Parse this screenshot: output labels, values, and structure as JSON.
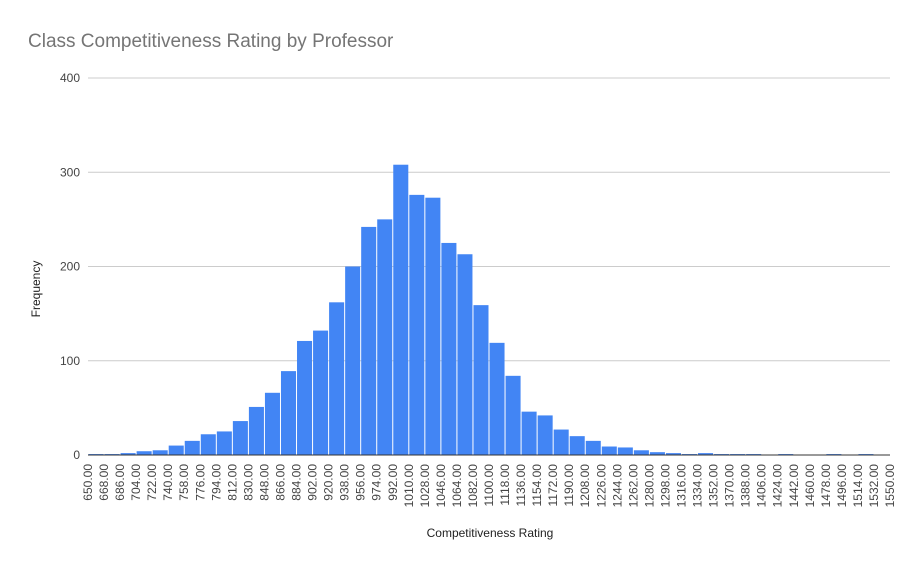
{
  "chart_data": {
    "type": "histogram",
    "title": "Class Competitiveness Rating by Professor",
    "x_label": "Competitiveness Rating",
    "y_label": "Frequency",
    "color": "#4285f4",
    "grid": true,
    "bins": [
      650,
      668,
      686,
      704,
      722,
      740,
      758,
      776,
      794,
      812,
      830,
      848,
      866,
      884,
      902,
      920,
      938,
      956,
      974,
      992,
      1010,
      1028,
      1046,
      1064,
      1082,
      1100,
      1118,
      1136,
      1154,
      1172,
      1190,
      1208,
      1226,
      1244,
      1262,
      1280,
      1298,
      1316,
      1334,
      1352,
      1370,
      1388,
      1406,
      1424,
      1442,
      1460,
      1478,
      1496,
      1514,
      1532,
      1550
    ],
    "values": [
      1,
      1,
      2,
      4,
      5,
      10,
      15,
      22,
      25,
      36,
      51,
      66,
      89,
      121,
      132,
      162,
      200,
      242,
      250,
      308,
      276,
      273,
      225,
      213,
      159,
      119,
      84,
      46,
      42,
      27,
      20,
      15,
      9,
      8,
      5,
      3,
      2,
      1,
      2,
      1,
      1,
      1,
      0,
      1,
      0,
      0,
      1,
      0,
      1,
      0
    ],
    "xlim": [
      650,
      1550
    ],
    "xticks": [
      {
        "value": 650,
        "label": "650.00"
      },
      {
        "value": 668,
        "label": "668.00"
      },
      {
        "value": 686,
        "label": "686.00"
      },
      {
        "value": 704,
        "label": "704.00"
      },
      {
        "value": 722,
        "label": "722.00"
      },
      {
        "value": 740,
        "label": "740.00"
      },
      {
        "value": 758,
        "label": "758.00"
      },
      {
        "value": 776,
        "label": "776.00"
      },
      {
        "value": 794,
        "label": "794.00"
      },
      {
        "value": 812,
        "label": "812.00"
      },
      {
        "value": 830,
        "label": "830.00"
      },
      {
        "value": 848,
        "label": "848.00"
      },
      {
        "value": 866,
        "label": "866.00"
      },
      {
        "value": 884,
        "label": "884.00"
      },
      {
        "value": 902,
        "label": "902.00"
      },
      {
        "value": 920,
        "label": "920.00"
      },
      {
        "value": 938,
        "label": "938.00"
      },
      {
        "value": 956,
        "label": "956.00"
      },
      {
        "value": 974,
        "label": "974.00"
      },
      {
        "value": 992,
        "label": "992.00"
      },
      {
        "value": 1010,
        "label": "1010.00"
      },
      {
        "value": 1028,
        "label": "1028.00"
      },
      {
        "value": 1046,
        "label": "1046.00"
      },
      {
        "value": 1064,
        "label": "1064.00"
      },
      {
        "value": 1082,
        "label": "1082.00"
      },
      {
        "value": 1100,
        "label": "1100.00"
      },
      {
        "value": 1118,
        "label": "1118.00"
      },
      {
        "value": 1136,
        "label": "1136.00"
      },
      {
        "value": 1154,
        "label": "1154.00"
      },
      {
        "value": 1172,
        "label": "1172.00"
      },
      {
        "value": 1190,
        "label": "1190.00"
      },
      {
        "value": 1208,
        "label": "1208.00"
      },
      {
        "value": 1226,
        "label": "1226.00"
      },
      {
        "value": 1244,
        "label": "1244.00"
      },
      {
        "value": 1262,
        "label": "1262.00"
      },
      {
        "value": 1280,
        "label": "1280.00"
      },
      {
        "value": 1298,
        "label": "1298.00"
      },
      {
        "value": 1316,
        "label": "1316.00"
      },
      {
        "value": 1334,
        "label": "1334.00"
      },
      {
        "value": 1352,
        "label": "1352.00"
      },
      {
        "value": 1370,
        "label": "1370.00"
      },
      {
        "value": 1388,
        "label": "1388.00"
      },
      {
        "value": 1406,
        "label": "1406.00"
      },
      {
        "value": 1424,
        "label": "1424.00"
      },
      {
        "value": 1442,
        "label": "1442.00"
      },
      {
        "value": 1460,
        "label": "1460.00"
      },
      {
        "value": 1478,
        "label": "1478.00"
      },
      {
        "value": 1496,
        "label": "1496.00"
      },
      {
        "value": 1514,
        "label": "1514.00"
      },
      {
        "value": 1532,
        "label": "1532.00"
      },
      {
        "value": 1550,
        "label": "1550.00"
      }
    ],
    "ylim": [
      0,
      400
    ],
    "yticks": [
      0,
      100,
      200,
      300,
      400
    ]
  }
}
